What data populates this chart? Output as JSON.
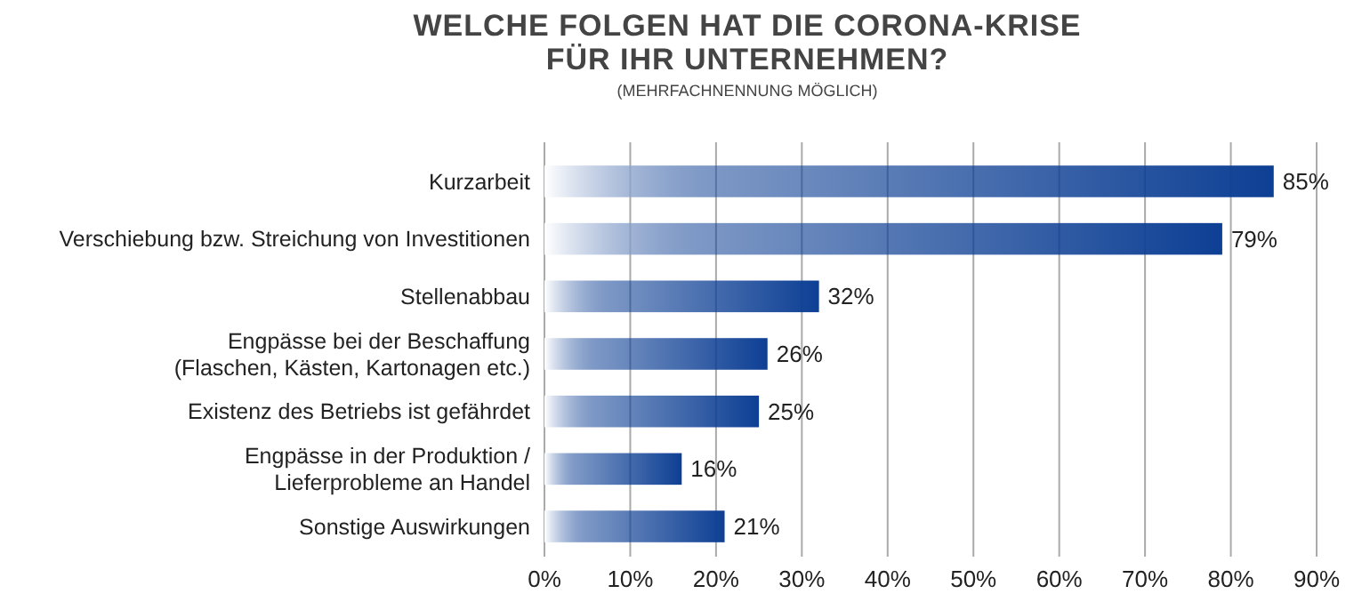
{
  "chart_data": {
    "type": "bar",
    "orientation": "horizontal",
    "title": "WELCHE FOLGEN HAT DIE CORONA-KRISE\nFÜR IHR UNTERNEHMEN?",
    "subtitle": "(MEHRFACHNENNUNG MÖGLICH)",
    "categories": [
      "Kurzarbeit",
      "Verschiebung bzw. Streichung von Investitionen",
      "Stellenabbau",
      "Engpässe bei der Beschaffung\n(Flaschen, Kästen, Kartonagen etc.)",
      "Existenz des Betriebs ist gefährdet",
      "Engpässe in der Produktion /\nLieferprobleme an Handel",
      "Sonstige Auswirkungen"
    ],
    "values": [
      85,
      79,
      32,
      26,
      25,
      16,
      21
    ],
    "value_labels": [
      "85%",
      "79%",
      "32%",
      "26%",
      "25%",
      "16%",
      "21%"
    ],
    "color": "#0d3f94",
    "xlim": [
      0,
      90
    ],
    "xticks": [
      {
        "value": 0,
        "label": "0%"
      },
      {
        "value": 10,
        "label": "10%"
      },
      {
        "value": 20,
        "label": "20%"
      },
      {
        "value": 30,
        "label": "30%"
      },
      {
        "value": 40,
        "label": "40%"
      },
      {
        "value": 50,
        "label": "50%"
      },
      {
        "value": 60,
        "label": "60%"
      },
      {
        "value": 70,
        "label": "70%"
      },
      {
        "value": 80,
        "label": "80%"
      },
      {
        "value": 90,
        "label": "90%"
      }
    ],
    "grid": "x"
  }
}
